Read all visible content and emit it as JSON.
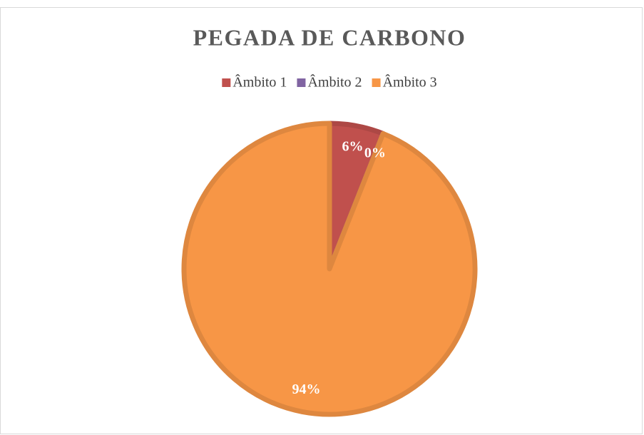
{
  "chart_data": {
    "type": "pie",
    "title": "PEGADA DE CARBONO",
    "categories": [
      "Âmbito 1",
      "Âmbito 2",
      "Âmbito 3"
    ],
    "values": [
      6,
      0,
      94
    ],
    "value_labels": [
      "6%",
      "0%",
      "94%"
    ],
    "colors": [
      "#c0504d",
      "#8064a2",
      "#f79646"
    ],
    "legend": "top"
  }
}
